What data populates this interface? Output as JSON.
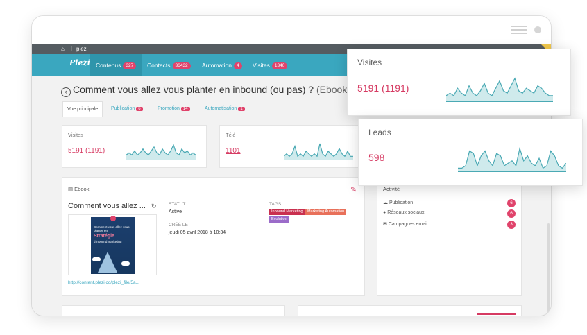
{
  "header": {
    "org": "plezi",
    "right_label": "plezi"
  },
  "logo": {
    "text": "Plezi"
  },
  "nav": {
    "items": [
      {
        "label": "Contenus",
        "count": "327"
      },
      {
        "label": "Contacts",
        "count": "36432"
      },
      {
        "label": "Automation",
        "count": "4"
      },
      {
        "label": "Visites",
        "count": "1340"
      }
    ]
  },
  "page": {
    "title": "Comment vous allez vous planter en inbound (ou pas) ?",
    "kind": "(Ebook)"
  },
  "tabs": [
    {
      "label": "Vue principale",
      "count": ""
    },
    {
      "label": "Publication",
      "count": "6"
    },
    {
      "label": "Promotion",
      "count": "14"
    },
    {
      "label": "Automatisation",
      "count": "1"
    }
  ],
  "stats": {
    "visites": {
      "label": "Visites",
      "value": "5191 (1191)"
    },
    "tele": {
      "label": "Télé",
      "value": "1101"
    }
  },
  "ebook": {
    "section_label": "Ebook",
    "name": "Comment vous allez ...",
    "statut_label": "STATUT",
    "statut_value": "Active",
    "cree_label": "CRÉÉ LE",
    "cree_value": "jeudi 05 avril 2018 à 10:34",
    "tags_label": "TAGS",
    "tags": [
      {
        "label": "Inbound Marketing",
        "color": "#c9304f"
      },
      {
        "label": "Marketing Automation",
        "color": "#e8705a"
      },
      {
        "label": "Evolution",
        "color": "#9b6cc9"
      }
    ],
    "link": "http://content.plezi.co/plezi_file/5a...",
    "cover": {
      "line1": "Comment vous allez vous planter en",
      "line2": "Stratégie",
      "line3": "d'inbound marketing"
    }
  },
  "activite": {
    "title": "Activité",
    "rows": [
      {
        "icon": "cloud-icon",
        "label": "Publication",
        "count": "6"
      },
      {
        "icon": "comment-icon",
        "label": "Réseaux sociaux",
        "count": "6"
      },
      {
        "icon": "envelope-icon",
        "label": "Campagnes email",
        "count": "3"
      }
    ]
  },
  "popups": {
    "visites": {
      "label": "Visites",
      "value": "5191 (1191)",
      "spark": [
        2,
        3,
        2,
        5,
        3,
        2,
        6,
        3,
        2,
        4,
        7,
        3,
        2,
        5,
        8,
        4,
        3,
        6,
        9,
        4,
        3,
        5,
        4,
        3,
        6,
        5,
        3,
        2,
        2
      ]
    },
    "leads": {
      "label": "Leads",
      "value": "598",
      "spark": [
        1,
        1,
        2,
        8,
        7,
        2,
        6,
        8,
        4,
        2,
        7,
        6,
        2,
        3,
        4,
        2,
        9,
        4,
        6,
        3,
        2,
        5,
        1,
        2,
        8,
        6,
        2,
        1,
        3
      ]
    }
  },
  "sparks": {
    "visites_card": [
      2,
      3,
      2,
      4,
      2,
      3,
      5,
      3,
      2,
      4,
      6,
      3,
      2,
      5,
      3,
      2,
      4,
      7,
      3,
      2,
      5,
      3,
      4,
      2,
      3,
      2
    ],
    "tele_card": [
      1,
      2,
      1,
      2,
      5,
      1,
      2,
      1,
      3,
      2,
      1,
      2,
      1,
      6,
      2,
      1,
      3,
      2,
      1,
      2,
      4,
      2,
      1,
      3,
      1,
      1
    ]
  },
  "colors": {
    "accent": "#3aa7bf",
    "pink": "#d63a62",
    "spark_fill": "#cfeaec",
    "spark_line": "#4aa9b4"
  }
}
